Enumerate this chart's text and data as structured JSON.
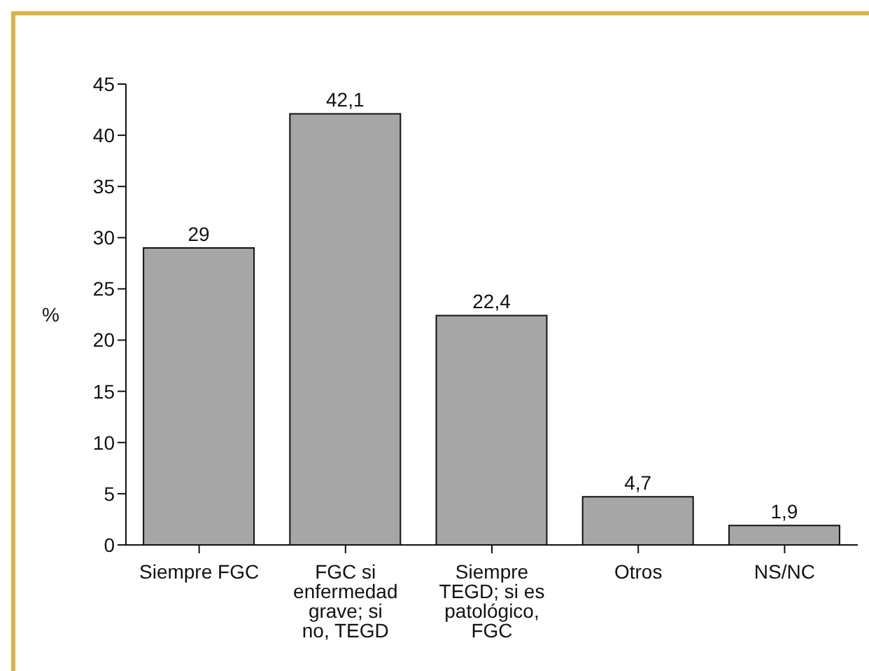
{
  "chart_data": {
    "type": "bar",
    "ylabel": "%",
    "categories": [
      "Siempre FGC",
      "FGC si enfermedad grave; si no, TEGD",
      "Siempre TEGD; si es patológico, FGC",
      "Otros",
      "NS/NC"
    ],
    "values": [
      29,
      42.1,
      22.4,
      4.7,
      1.9
    ],
    "color": "#a6a6a6",
    "ylim": [
      0,
      45
    ],
    "yticks": [
      0,
      5,
      10,
      15,
      20,
      25,
      30,
      35,
      40,
      45
    ],
    "grid": false,
    "value_labels": [
      "29",
      "42,1",
      "22,4",
      "4,7",
      "1,9"
    ]
  }
}
